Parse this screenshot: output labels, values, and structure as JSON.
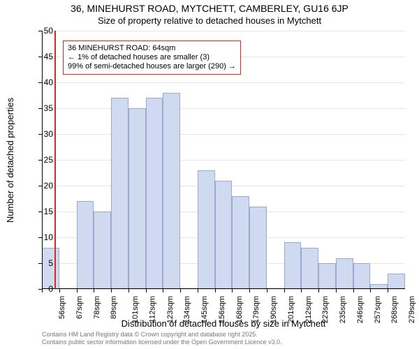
{
  "title_line1": "36, MINEHURST ROAD, MYTCHETT, CAMBERLEY, GU16 6JP",
  "title_line2": "Size of property relative to detached houses in Mytchett",
  "y_axis_label": "Number of detached properties",
  "x_axis_label": "Distribution of detached houses by size in Mytchett",
  "footer_line1": "Contains HM Land Registry data © Crown copyright and database right 2025.",
  "footer_line2": "Contains public sector information licensed under the Open Government Licence v3.0.",
  "chart": {
    "type": "histogram",
    "background_color": "#ffffff",
    "grid_color": "#e5e5e5",
    "axis_color": "#000000",
    "bar_fill": "#cfd9ef",
    "bar_stroke": "#9aa9cf",
    "vline_color": "#d9281e",
    "anno_border": "#d9281e",
    "y": {
      "min": 0,
      "max": 50,
      "step": 5,
      "ticks": [
        0,
        5,
        10,
        15,
        20,
        25,
        30,
        35,
        40,
        45,
        50
      ]
    },
    "x": {
      "bin_start": 56,
      "bin_width": 11,
      "n_bins": 21,
      "tick_labels": [
        "56sqm",
        "67sqm",
        "78sqm",
        "89sqm",
        "101sqm",
        "112sqm",
        "123sqm",
        "134sqm",
        "145sqm",
        "156sqm",
        "168sqm",
        "179sqm",
        "190sqm",
        "201sqm",
        "212sqm",
        "223sqm",
        "235sqm",
        "246sqm",
        "257sqm",
        "268sqm",
        "279sqm"
      ]
    },
    "bars": [
      8,
      0,
      17,
      15,
      37,
      35,
      37,
      38,
      0,
      23,
      21,
      18,
      16,
      0,
      9,
      8,
      5,
      6,
      5,
      1,
      3
    ],
    "vline_sqm": 64,
    "annotation": {
      "line1": "36 MINEHURST ROAD: 64sqm",
      "line2": "← 1% of detached houses are smaller (3)",
      "line3": "99% of semi-detached houses are larger (290) →"
    }
  }
}
